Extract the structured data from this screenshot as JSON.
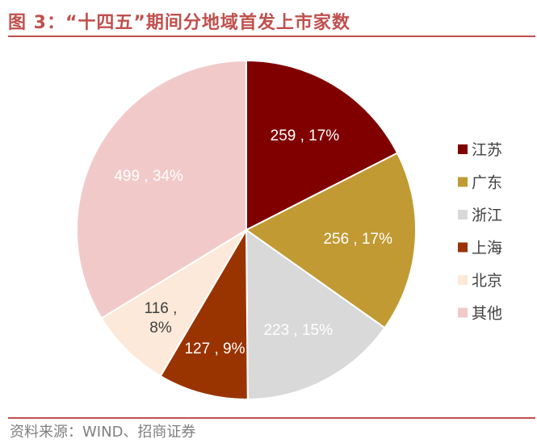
{
  "title": "图 3：“十四五”期间分地域首发上市家数",
  "source": "资料来源：WIND、招商证券",
  "chart_data": {
    "type": "pie",
    "categories": [
      "江苏",
      "广东",
      "浙江",
      "上海",
      "北京",
      "其他"
    ],
    "values": [
      259,
      256,
      223,
      127,
      116,
      499
    ],
    "percent_labels": [
      "17%",
      "17%",
      "15%",
      "9%",
      "8%",
      "34%"
    ],
    "data_labels": [
      "259 , 17%",
      "256 , 17%",
      "223 , 15%",
      "127 , 9%",
      "116 ,\n8%",
      "499 , 34%"
    ],
    "colors": [
      "#800000",
      "#c19a33",
      "#d9d9d9",
      "#993300",
      "#fde9d9",
      "#f2c9c9"
    ],
    "label_colors": [
      "#ffffff",
      "#ffffff",
      "#ffffff",
      "#ffffff",
      "#404040",
      "#ffffff"
    ],
    "legend_position": "right",
    "start_angle": "12 o'clock",
    "direction": "clockwise"
  }
}
